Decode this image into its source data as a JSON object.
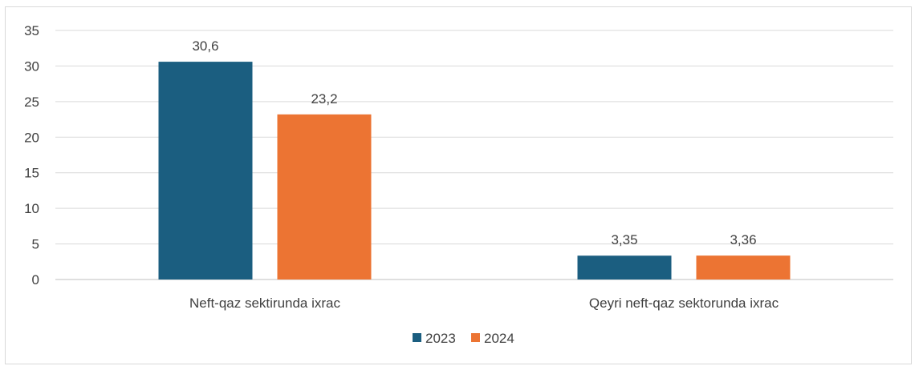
{
  "chart_data": {
    "type": "bar",
    "categories": [
      "Neft-qaz sektirunda ixrac",
      "Qeyri neft-qaz sektorunda ixrac"
    ],
    "series": [
      {
        "name": "2023",
        "values": [
          30.6,
          3.35
        ],
        "labels": [
          "30,6",
          "3,35"
        ],
        "color": "#1b5e80"
      },
      {
        "name": "2024",
        "values": [
          23.2,
          3.36
        ],
        "labels": [
          "23,2",
          "3,36"
        ],
        "color": "#ec7433"
      }
    ],
    "yticks": [
      0,
      5,
      10,
      15,
      20,
      25,
      30,
      35
    ],
    "ylim": [
      0,
      35
    ],
    "grid": true,
    "legend": "bottom"
  }
}
